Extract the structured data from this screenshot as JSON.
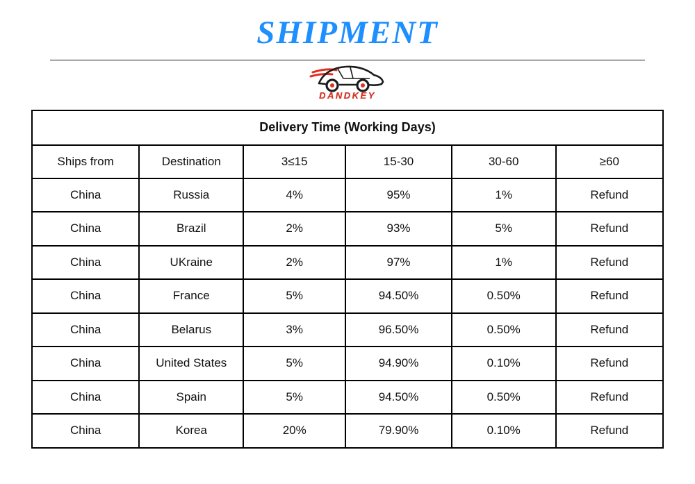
{
  "page": {
    "title": "SHIPMENT"
  },
  "logo": {
    "brand": "DANDKEY",
    "icon": "car-logo"
  },
  "table": {
    "caption": "Delivery Time (Working Days)",
    "columns": [
      "Ships from",
      "Destination",
      "3≤15",
      "15-30",
      "30-60",
      "≥60"
    ],
    "rows": [
      [
        "China",
        "Russia",
        "4%",
        "95%",
        "1%",
        "Refund"
      ],
      [
        "China",
        "Brazil",
        "2%",
        "93%",
        "5%",
        "Refund"
      ],
      [
        "China",
        "UKraine",
        "2%",
        "97%",
        "1%",
        "Refund"
      ],
      [
        "China",
        "France",
        "5%",
        "94.50%",
        "0.50%",
        "Refund"
      ],
      [
        "China",
        "Belarus",
        "3%",
        "96.50%",
        "0.50%",
        "Refund"
      ],
      [
        "China",
        "United States",
        "5%",
        "94.90%",
        "0.10%",
        "Refund"
      ],
      [
        "China",
        "Spain",
        "5%",
        "94.50%",
        "0.50%",
        "Refund"
      ],
      [
        "China",
        "Korea",
        "20%",
        "79.90%",
        "0.10%",
        "Refund"
      ]
    ]
  },
  "colors": {
    "title_blue": "#1e8fff",
    "brand_red": "#dd3222",
    "table_border": "#000000"
  }
}
